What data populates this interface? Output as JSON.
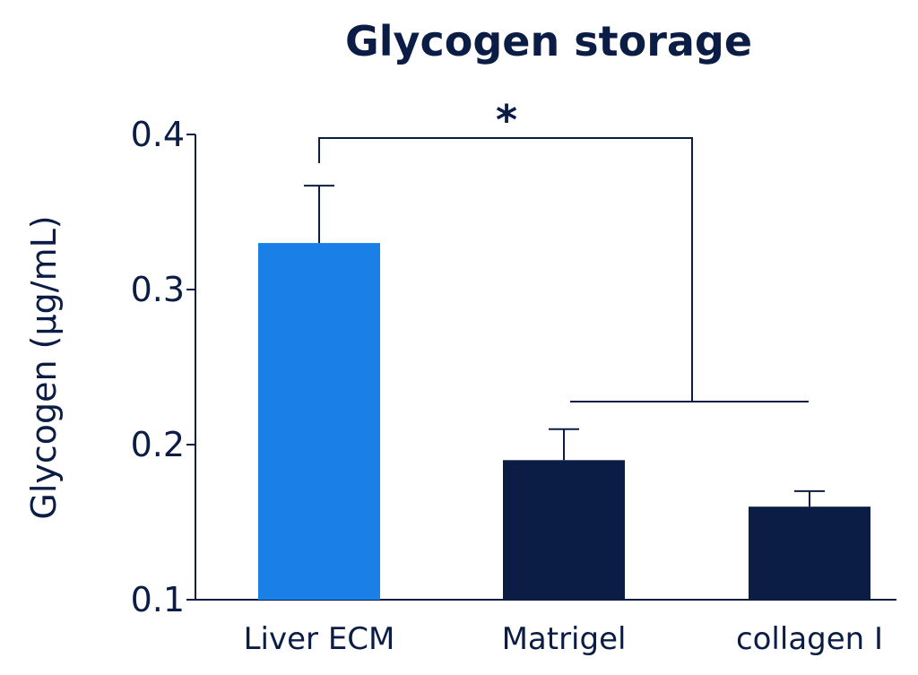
{
  "chart_data": {
    "type": "bar",
    "title": "Glycogen storage",
    "xlabel": "",
    "ylabel": "Glycogen (µg/mL)",
    "categories": [
      "Liver ECM",
      "Matrigel",
      "collagen I"
    ],
    "values": [
      0.33,
      0.19,
      0.16
    ],
    "errors": [
      0.037,
      0.02,
      0.01
    ],
    "ylim": [
      0.1,
      0.4
    ],
    "yticks": [
      0.1,
      0.2,
      0.3,
      0.4
    ],
    "ytick_labels": [
      "0.1",
      "0.2",
      "0.3",
      "0.4"
    ],
    "bar_colors": [
      "#1a7fe6",
      "#0b1d45",
      "#0b1d45"
    ],
    "grid": false,
    "annotations": [
      {
        "text": "*",
        "type": "significance-bracket",
        "from_category": "Liver ECM",
        "to_categories": [
          "Matrigel",
          "collagen I"
        ]
      }
    ]
  }
}
